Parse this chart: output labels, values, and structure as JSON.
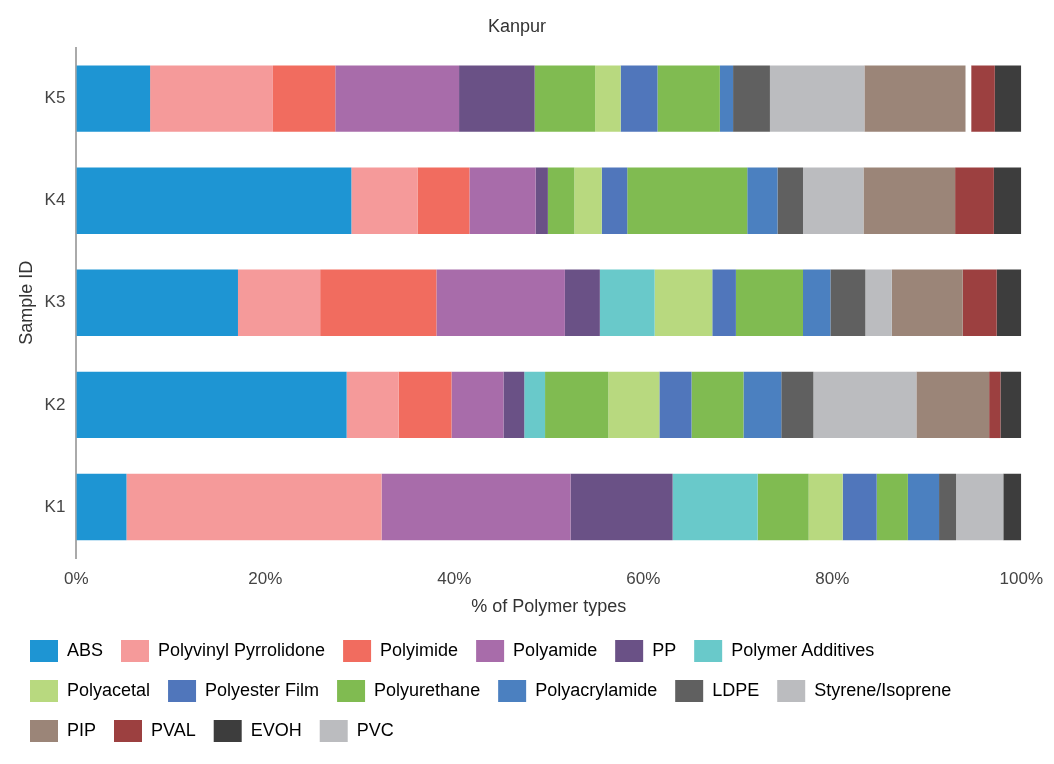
{
  "chart_data": {
    "type": "bar",
    "orientation": "horizontal",
    "stacked": true,
    "title": "Kanpur",
    "xlabel": "% of Polymer types",
    "ylabel": "Sample ID",
    "categories": [
      "K5",
      "K4",
      "K3",
      "K2",
      "K1"
    ],
    "xlim": [
      0,
      100
    ],
    "xticks": [
      {
        "value": 0,
        "label": "0%"
      },
      {
        "value": 20,
        "label": "20%"
      },
      {
        "value": 40,
        "label": "40%"
      },
      {
        "value": 60,
        "label": "60%"
      },
      {
        "value": 80,
        "label": "80%"
      },
      {
        "value": 100,
        "label": "100%"
      }
    ],
    "grid": false,
    "legend": "bottom",
    "series": [
      {
        "name": "ABS",
        "color": "#1e95d3",
        "values": [
          7.8,
          29.1,
          17.1,
          28.6,
          5.3
        ]
      },
      {
        "name": "Polyvinyl Pyrrolidone",
        "color": "#f59a9a",
        "values": [
          13.0,
          7.0,
          8.7,
          5.5,
          27.0
        ]
      },
      {
        "name": "Polyimide",
        "color": "#f16c5f",
        "values": [
          6.6,
          5.5,
          12.3,
          5.6,
          0
        ]
      },
      {
        "name": "Polyamide",
        "color": "#a86caa",
        "values": [
          13.1,
          7.0,
          13.6,
          5.5,
          20.0
        ]
      },
      {
        "name": "PP",
        "color": "#6a5186",
        "values": [
          8.0,
          1.3,
          3.7,
          2.2,
          10.8
        ]
      },
      {
        "name": "Polymer Additives",
        "color": "#69c9ca",
        "values": [
          0,
          0,
          5.8,
          2.2,
          9.0
        ]
      },
      {
        "color": "#80bb51",
        "values": [
          6.4,
          2.8,
          0,
          6.7,
          5.4
        ]
      },
      {
        "name": "Polyacetal",
        "color": "#b8d97f",
        "values": [
          2.7,
          2.9,
          6.1,
          5.4,
          3.6
        ]
      },
      {
        "name": "Polyester Film",
        "color": "#5076bb",
        "values": [
          3.9,
          2.7,
          2.5,
          3.4,
          3.6
        ]
      },
      {
        "name": "Polyurethane",
        "color": "#80bb51",
        "values": [
          6.6,
          12.7,
          7.1,
          5.5,
          3.3
        ]
      },
      {
        "name": "Polyacrylamide",
        "color": "#4b80c0",
        "values": [
          1.4,
          3.2,
          2.9,
          4.0,
          3.3
        ]
      },
      {
        "name": "LDPE",
        "color": "#606060",
        "values": [
          3.9,
          2.7,
          3.7,
          3.4,
          1.8
        ]
      },
      {
        "name": "Styrene/Isoprene",
        "color": "#bbbcbf",
        "values": [
          10.0,
          6.4,
          2.8,
          10.9,
          5.0
        ]
      },
      {
        "name": "PIP",
        "color": "#9b8578",
        "values": [
          10.7,
          9.7,
          7.5,
          7.7,
          0
        ]
      },
      {
        "color": "#ffffff",
        "values": [
          0.6,
          0,
          0,
          0,
          0
        ]
      },
      {
        "name": "PVAL",
        "color": "#9c4040",
        "values": [
          2.5,
          4.1,
          3.6,
          1.2,
          0
        ]
      },
      {
        "name": "EVOH",
        "color": "#3d3d3d",
        "values": [
          2.8,
          2.9,
          2.6,
          2.2,
          1.9
        ]
      },
      {
        "name": "PVC",
        "color": "#bbbcbf",
        "values": [
          0,
          0,
          0,
          0,
          0
        ]
      }
    ]
  }
}
